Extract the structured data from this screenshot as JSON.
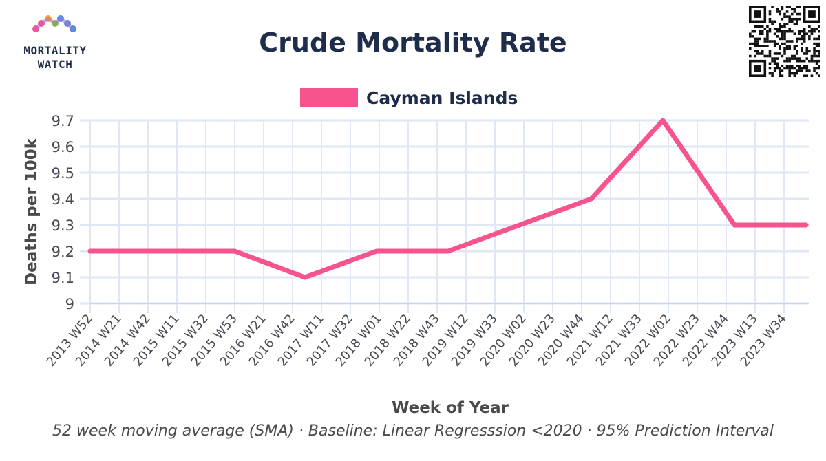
{
  "header": {
    "title": "Crude Mortality Rate",
    "logo_text_line1": "MORTALITY",
    "logo_text_line2": "WATCH"
  },
  "legend": {
    "label": "Cayman Islands",
    "color": "#f7538f"
  },
  "footnote": "52 week moving average (SMA) · Baseline: Linear Regresssion <2020 · 95% Prediction Interval",
  "chart_data": {
    "type": "line",
    "xlabel": "Week of Year",
    "ylabel": "Deaths per 100k",
    "ylim": [
      9,
      9.7
    ],
    "yticks": [
      9,
      9.1,
      9.2,
      9.3,
      9.4,
      9.5,
      9.6,
      9.7
    ],
    "xtick_labels": [
      "2013 W52",
      "2014 W21",
      "2014 W42",
      "2015 W11",
      "2015 W32",
      "2015 W53",
      "2016 W21",
      "2016 W42",
      "2017 W11",
      "2017 W32",
      "2018 W01",
      "2018 W22",
      "2018 W43",
      "2019 W12",
      "2019 W33",
      "2020 W02",
      "2020 W23",
      "2020 W44",
      "2021 W12",
      "2021 W33",
      "2022 W02",
      "2022 W23",
      "2022 W44",
      "2023 W13",
      "2023 W34"
    ],
    "grid": true,
    "legend_position": "top-center",
    "series": [
      {
        "name": "Cayman Islands",
        "color": "#f7538f",
        "points": [
          {
            "x": "2013 W52",
            "y": 9.2
          },
          {
            "x": "2015 W53",
            "y": 9.2
          },
          {
            "x": "2016 W52",
            "y": 9.1
          },
          {
            "x": "2017 W52",
            "y": 9.2
          },
          {
            "x": "2018 W52",
            "y": 9.2
          },
          {
            "x": "2019 W52",
            "y": 9.3
          },
          {
            "x": "2020 W52",
            "y": 9.4
          },
          {
            "x": "2021 W52",
            "y": 9.7
          },
          {
            "x": "2022 W52",
            "y": 9.3
          },
          {
            "x": "2023 W52",
            "y": 9.3
          }
        ]
      }
    ]
  }
}
